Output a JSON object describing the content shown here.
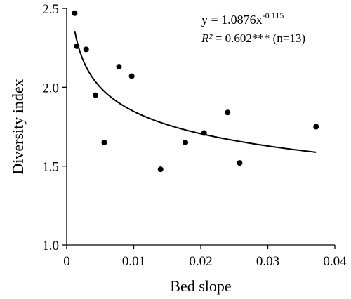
{
  "chart_data": {
    "type": "scatter",
    "xlabel": "Bed slope",
    "ylabel": "Diversity index",
    "xlim": [
      0,
      0.04
    ],
    "ylim": [
      1.0,
      2.5
    ],
    "x_ticks": [
      0,
      0.01,
      0.02,
      0.03,
      0.04
    ],
    "x_tick_labels": [
      "0",
      "0.01",
      "0.02",
      "0.03",
      "0.04"
    ],
    "y_ticks": [
      1.0,
      1.5,
      2.0,
      2.5
    ],
    "y_tick_labels": [
      "1.0",
      "1.5",
      "2.0",
      "2.5"
    ],
    "grid": false,
    "series": [
      {
        "points": [
          {
            "x": 0.0012,
            "y": 2.47
          },
          {
            "x": 0.0015,
            "y": 2.26
          },
          {
            "x": 0.0029,
            "y": 2.24
          },
          {
            "x": 0.0043,
            "y": 1.95
          },
          {
            "x": 0.0056,
            "y": 1.65
          },
          {
            "x": 0.0078,
            "y": 2.13
          },
          {
            "x": 0.0097,
            "y": 2.07
          },
          {
            "x": 0.014,
            "y": 1.48
          },
          {
            "x": 0.0177,
            "y": 1.65
          },
          {
            "x": 0.0205,
            "y": 1.71
          },
          {
            "x": 0.024,
            "y": 1.84
          },
          {
            "x": 0.0258,
            "y": 1.52
          },
          {
            "x": 0.0372,
            "y": 1.75
          }
        ]
      }
    ],
    "trendline": {
      "type": "power",
      "a": 1.0876,
      "b": -0.115,
      "x_range": [
        0.0012,
        0.0372
      ]
    },
    "annotations": {
      "equation_main": "y = 1.0876x",
      "equation_exponent": "-0.115",
      "r2_label": "R²",
      "r2_value": " = 0.602*** (n=13)"
    }
  }
}
